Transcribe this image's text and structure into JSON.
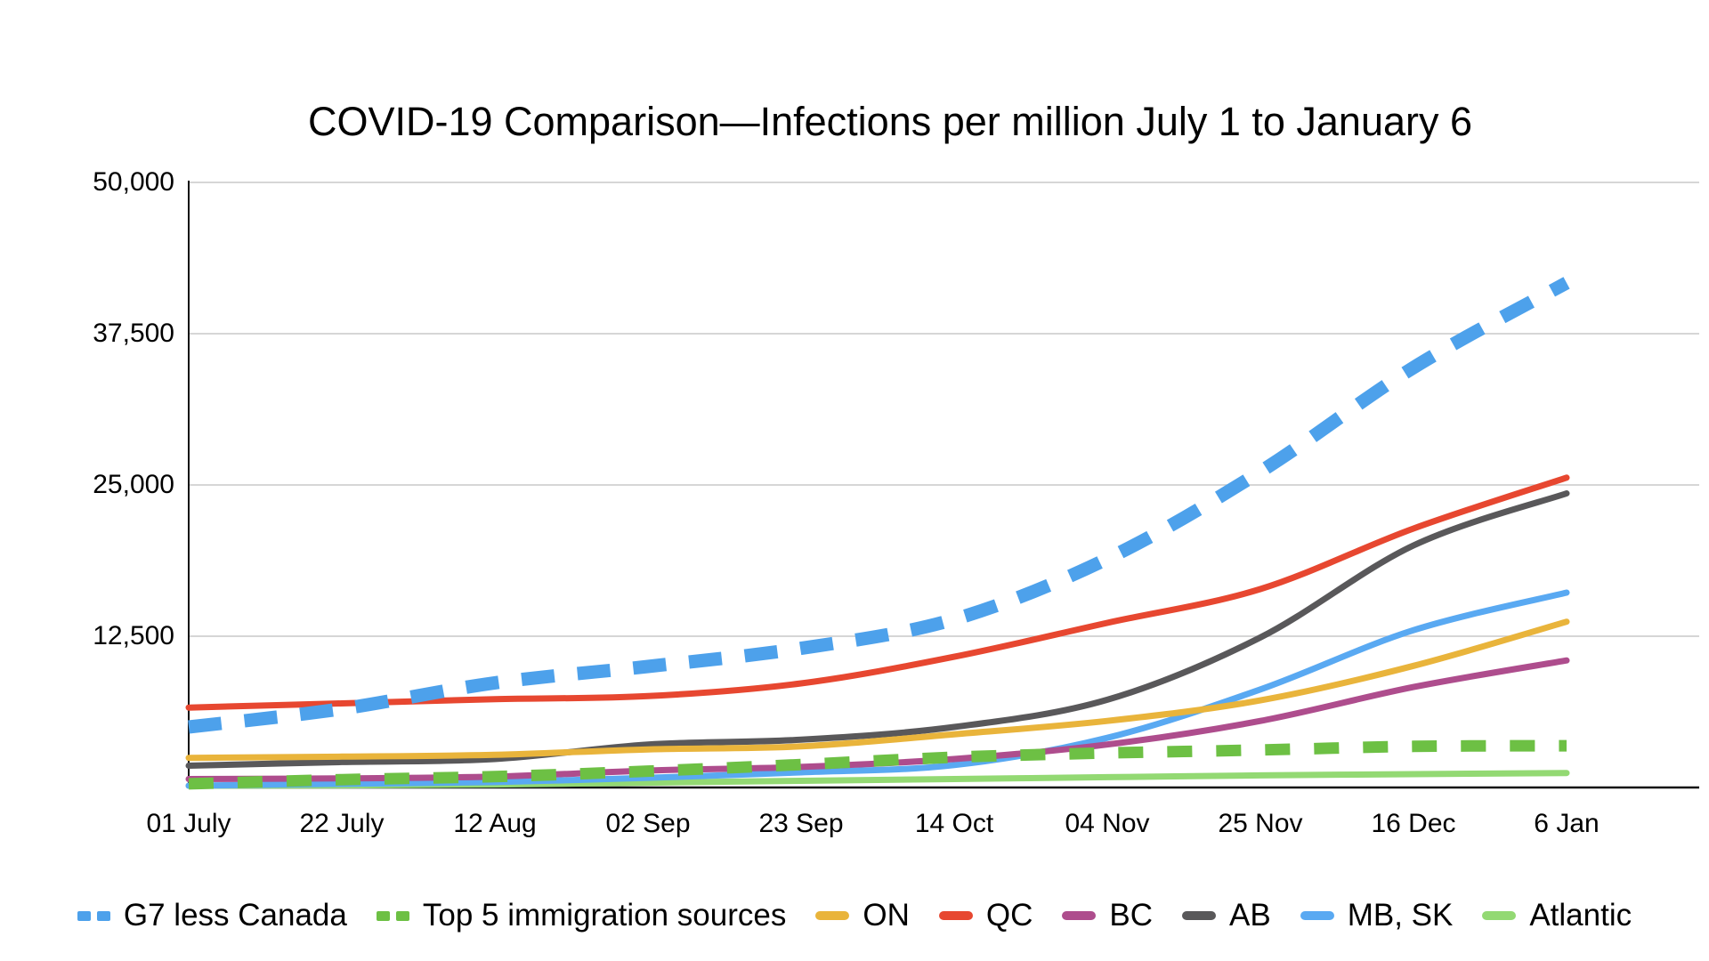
{
  "chart_data": {
    "type": "line",
    "title": "COVID-19 Comparison—Infections per million July 1 to January 6",
    "categories": [
      "01 July",
      "22 July",
      "12 Aug",
      "02 Sep",
      "23 Sep",
      "14 Oct",
      "04 Nov",
      "25 Nov",
      "16 Dec",
      "6 Jan"
    ],
    "xlabel": "",
    "ylabel": "",
    "ylim": [
      0,
      50000
    ],
    "y_ticks": [
      {
        "value": 50000,
        "label": "50,000"
      },
      {
        "value": 37500,
        "label": "37,500"
      },
      {
        "value": 25000,
        "label": "25,000"
      },
      {
        "value": 12500,
        "label": "12,500"
      }
    ],
    "grid": true,
    "legend_position": "bottom",
    "series": [
      {
        "name": "G7 less Canada",
        "color": "#4DA1EB",
        "style": "dashed",
        "values": [
          5000,
          6500,
          8650,
          10000,
          11500,
          13900,
          18900,
          26100,
          34700,
          41700
        ]
      },
      {
        "name": "Top 5 immigration sources",
        "color": "#6DC044",
        "style": "dashed",
        "values": [
          300,
          650,
          900,
          1350,
          1900,
          2500,
          2850,
          3100,
          3400,
          3450
        ]
      },
      {
        "name": "ON",
        "color": "#E9B43B",
        "style": "solid",
        "values": [
          2450,
          2550,
          2700,
          3150,
          3400,
          4400,
          5500,
          7200,
          10050,
          13700
        ]
      },
      {
        "name": "QC",
        "color": "#E74730",
        "style": "solid",
        "values": [
          6600,
          6950,
          7300,
          7550,
          8600,
          10800,
          13600,
          16400,
          21400,
          25600
        ]
      },
      {
        "name": "BC",
        "color": "#AE4D8D",
        "style": "solid",
        "values": [
          700,
          750,
          900,
          1400,
          1700,
          2350,
          3550,
          5500,
          8300,
          10500
        ]
      },
      {
        "name": "AB",
        "color": "#59585A",
        "style": "solid",
        "values": [
          1800,
          2100,
          2350,
          3550,
          3950,
          5000,
          7250,
          12400,
          20000,
          24300
        ]
      },
      {
        "name": "MB, SK",
        "color": "#59A9F2",
        "style": "solid",
        "values": [
          150,
          300,
          450,
          800,
          1250,
          1850,
          4100,
          8100,
          13000,
          16100
        ]
      },
      {
        "name": "Atlantic",
        "color": "#93D973",
        "style": "solid",
        "values": [
          150,
          180,
          250,
          400,
          550,
          700,
          850,
          1000,
          1100,
          1200
        ]
      }
    ],
    "colors": {
      "gridline": "#C9C9C9",
      "axis": "#111111",
      "text": "#000000",
      "background": "#FFFFFF"
    }
  }
}
